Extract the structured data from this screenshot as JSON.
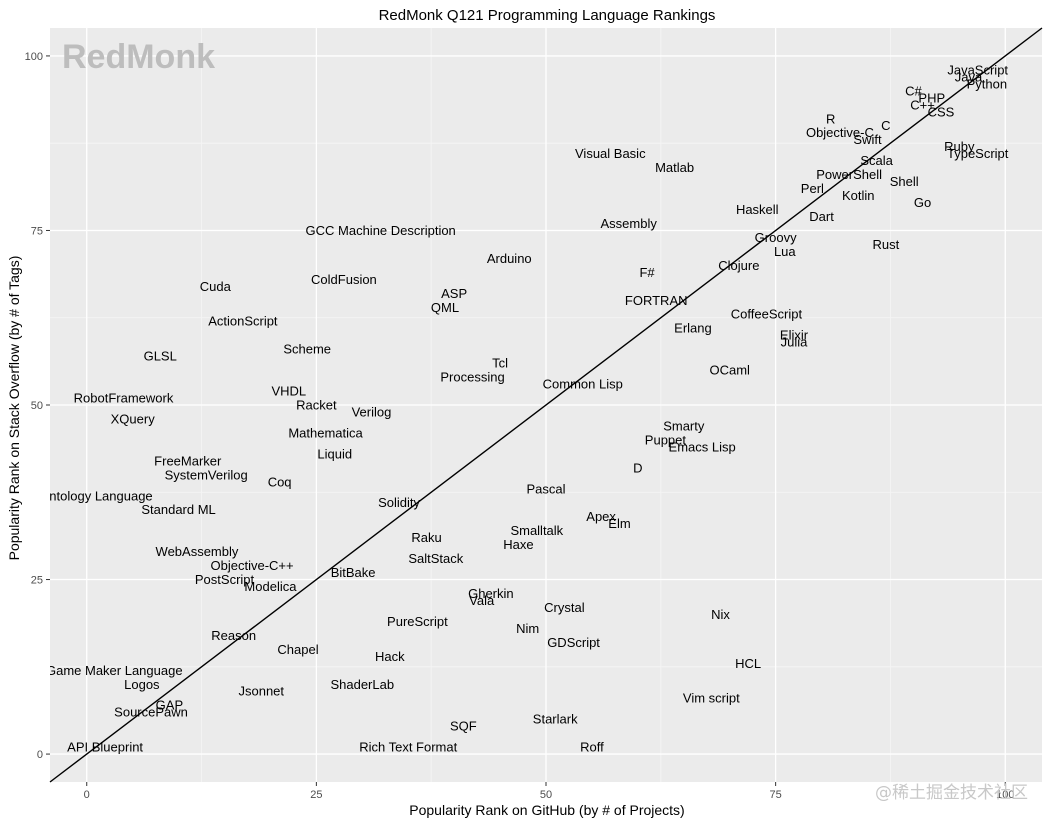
{
  "logo": "RedMonk",
  "watermark": "@稀土掘金技术社区",
  "chart_data": {
    "type": "scatter",
    "title": "RedMonk Q121 Programming Language Rankings",
    "xlabel": "Popularity Rank on GitHub (by # of Projects)",
    "ylabel": "Popularity Rank on Stack Overflow (by # of Tags)",
    "xlim": [
      -4,
      104
    ],
    "ylim": [
      -4,
      104
    ],
    "xticks": [
      0,
      25,
      50,
      75,
      100
    ],
    "yticks": [
      0,
      25,
      50,
      75,
      100
    ],
    "grid": true,
    "reference_line": "y = x",
    "points": [
      {
        "label": "JavaScript",
        "x": 97,
        "y": 98
      },
      {
        "label": "Java",
        "x": 96,
        "y": 97
      },
      {
        "label": "Python",
        "x": 98,
        "y": 96
      },
      {
        "label": "C#",
        "x": 90,
        "y": 95
      },
      {
        "label": "PHP",
        "x": 92,
        "y": 94
      },
      {
        "label": "C++",
        "x": 91,
        "y": 93
      },
      {
        "label": "CSS",
        "x": 93,
        "y": 92
      },
      {
        "label": "R",
        "x": 81,
        "y": 91
      },
      {
        "label": "C",
        "x": 87,
        "y": 90
      },
      {
        "label": "Objective-C",
        "x": 82,
        "y": 89
      },
      {
        "label": "Swift",
        "x": 85,
        "y": 88
      },
      {
        "label": "Ruby",
        "x": 95,
        "y": 87
      },
      {
        "label": "TypeScript",
        "x": 97,
        "y": 86
      },
      {
        "label": "Visual Basic",
        "x": 57,
        "y": 86
      },
      {
        "label": "Matlab",
        "x": 64,
        "y": 84
      },
      {
        "label": "Scala",
        "x": 86,
        "y": 85
      },
      {
        "label": "PowerShell",
        "x": 83,
        "y": 83
      },
      {
        "label": "Shell",
        "x": 89,
        "y": 82
      },
      {
        "label": "Perl",
        "x": 79,
        "y": 81
      },
      {
        "label": "Kotlin",
        "x": 84,
        "y": 80
      },
      {
        "label": "Go",
        "x": 91,
        "y": 79
      },
      {
        "label": "Haskell",
        "x": 73,
        "y": 78
      },
      {
        "label": "Dart",
        "x": 80,
        "y": 77
      },
      {
        "label": "Assembly",
        "x": 59,
        "y": 76
      },
      {
        "label": "GCC Machine Description",
        "x": 32,
        "y": 75
      },
      {
        "label": "Groovy",
        "x": 75,
        "y": 74
      },
      {
        "label": "Rust",
        "x": 87,
        "y": 73
      },
      {
        "label": "Lua",
        "x": 76,
        "y": 72
      },
      {
        "label": "Arduino",
        "x": 46,
        "y": 71
      },
      {
        "label": "Clojure",
        "x": 71,
        "y": 70
      },
      {
        "label": "F#",
        "x": 61,
        "y": 69
      },
      {
        "label": "Cuda",
        "x": 14,
        "y": 67
      },
      {
        "label": "ColdFusion",
        "x": 28,
        "y": 68
      },
      {
        "label": "ASP",
        "x": 40,
        "y": 66
      },
      {
        "label": "FORTRAN",
        "x": 62,
        "y": 65
      },
      {
        "label": "QML",
        "x": 39,
        "y": 64
      },
      {
        "label": "CoffeeScript",
        "x": 74,
        "y": 63
      },
      {
        "label": "ActionScript",
        "x": 17,
        "y": 62
      },
      {
        "label": "Erlang",
        "x": 66,
        "y": 61
      },
      {
        "label": "Elixir",
        "x": 77,
        "y": 60
      },
      {
        "label": "Julia",
        "x": 77,
        "y": 59
      },
      {
        "label": "Scheme",
        "x": 24,
        "y": 58
      },
      {
        "label": "GLSL",
        "x": 8,
        "y": 57
      },
      {
        "label": "Tcl",
        "x": 45,
        "y": 56
      },
      {
        "label": "OCaml",
        "x": 70,
        "y": 55
      },
      {
        "label": "Processing",
        "x": 42,
        "y": 54
      },
      {
        "label": "Common Lisp",
        "x": 54,
        "y": 53
      },
      {
        "label": "VHDL",
        "x": 22,
        "y": 52
      },
      {
        "label": "RobotFramework",
        "x": 4,
        "y": 51
      },
      {
        "label": "Racket",
        "x": 25,
        "y": 50
      },
      {
        "label": "Verilog",
        "x": 31,
        "y": 49
      },
      {
        "label": "XQuery",
        "x": 5,
        "y": 48
      },
      {
        "label": "Smarty",
        "x": 65,
        "y": 47
      },
      {
        "label": "Mathematica",
        "x": 26,
        "y": 46
      },
      {
        "label": "Puppet",
        "x": 63,
        "y": 45
      },
      {
        "label": "Emacs Lisp",
        "x": 67,
        "y": 44
      },
      {
        "label": "Liquid",
        "x": 27,
        "y": 43
      },
      {
        "label": "FreeMarker",
        "x": 11,
        "y": 42
      },
      {
        "label": "D",
        "x": 60,
        "y": 41
      },
      {
        "label": "SystemVerilog",
        "x": 13,
        "y": 40
      },
      {
        "label": "Coq",
        "x": 21,
        "y": 39
      },
      {
        "label": "Pascal",
        "x": 50,
        "y": 38
      },
      {
        "label": "Ontology Language",
        "x": 1,
        "y": 37
      },
      {
        "label": "Solidity",
        "x": 34,
        "y": 36
      },
      {
        "label": "Standard ML",
        "x": 10,
        "y": 35
      },
      {
        "label": "Apex",
        "x": 56,
        "y": 34
      },
      {
        "label": "Elm",
        "x": 58,
        "y": 33
      },
      {
        "label": "Smalltalk",
        "x": 49,
        "y": 32
      },
      {
        "label": "Raku",
        "x": 37,
        "y": 31
      },
      {
        "label": "Haxe",
        "x": 47,
        "y": 30
      },
      {
        "label": "WebAssembly",
        "x": 12,
        "y": 29
      },
      {
        "label": "SaltStack",
        "x": 38,
        "y": 28
      },
      {
        "label": "Objective-C++",
        "x": 18,
        "y": 27
      },
      {
        "label": "BitBake",
        "x": 29,
        "y": 26
      },
      {
        "label": "PostScript",
        "x": 15,
        "y": 25
      },
      {
        "label": "Modelica",
        "x": 20,
        "y": 24
      },
      {
        "label": "Gherkin",
        "x": 44,
        "y": 23
      },
      {
        "label": "Vala",
        "x": 43,
        "y": 22
      },
      {
        "label": "Crystal",
        "x": 52,
        "y": 21
      },
      {
        "label": "Nix",
        "x": 69,
        "y": 20
      },
      {
        "label": "PureScript",
        "x": 36,
        "y": 19
      },
      {
        "label": "Nim",
        "x": 48,
        "y": 18
      },
      {
        "label": "Reason",
        "x": 16,
        "y": 17
      },
      {
        "label": "GDScript",
        "x": 53,
        "y": 16
      },
      {
        "label": "Chapel",
        "x": 23,
        "y": 15
      },
      {
        "label": "Hack",
        "x": 33,
        "y": 14
      },
      {
        "label": "HCL",
        "x": 72,
        "y": 13
      },
      {
        "label": "Game Maker Language",
        "x": 3,
        "y": 12
      },
      {
        "label": "Logos",
        "x": 6,
        "y": 10
      },
      {
        "label": "ShaderLab",
        "x": 30,
        "y": 10
      },
      {
        "label": "Jsonnet",
        "x": 19,
        "y": 9
      },
      {
        "label": "Vim script",
        "x": 68,
        "y": 8
      },
      {
        "label": "GAP",
        "x": 9,
        "y": 7
      },
      {
        "label": "SourcePawn",
        "x": 7,
        "y": 6
      },
      {
        "label": "Starlark",
        "x": 51,
        "y": 5
      },
      {
        "label": "SQF",
        "x": 41,
        "y": 4
      },
      {
        "label": "API Blueprint",
        "x": 2,
        "y": 1
      },
      {
        "label": "Rich Text Format",
        "x": 35,
        "y": 1
      },
      {
        "label": "Roff",
        "x": 55,
        "y": 1
      }
    ]
  }
}
